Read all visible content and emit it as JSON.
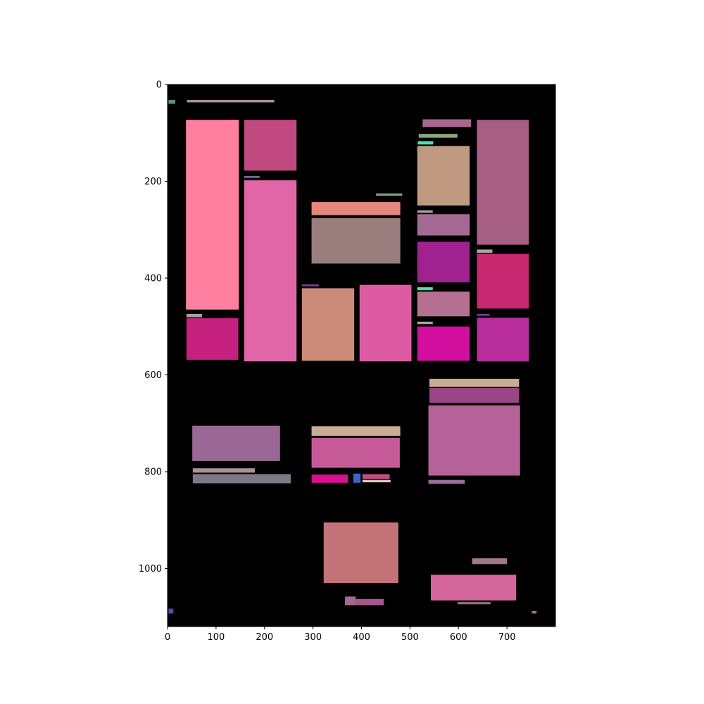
{
  "chart_data": {
    "type": "heatmap",
    "title": "",
    "xlabel": "",
    "ylabel": "",
    "xlim": [
      0,
      800
    ],
    "ylim": [
      1120,
      0
    ],
    "y_inverted": true,
    "grid": false,
    "background": "#000000",
    "x_ticks": [
      0,
      100,
      200,
      300,
      400,
      500,
      600,
      700
    ],
    "y_ticks": [
      0,
      200,
      400,
      600,
      800,
      1000
    ],
    "x_tick_labels": [
      "0",
      "100",
      "200",
      "300",
      "400",
      "500",
      "600",
      "700"
    ],
    "y_tick_labels": [
      "0",
      "200",
      "400",
      "600",
      "800",
      "1000"
    ],
    "rects": [
      {
        "x0": 2,
        "y0": 32,
        "x1": 16,
        "y1": 40,
        "color": "#5f8a8b"
      },
      {
        "x0": 40,
        "y0": 32,
        "x1": 220,
        "y1": 37,
        "color": "#a28f9c"
      },
      {
        "x0": 38,
        "y0": 73,
        "x1": 147,
        "y1": 465,
        "color": "#ff7fa0"
      },
      {
        "x0": 158,
        "y0": 73,
        "x1": 266,
        "y1": 178,
        "color": "#c04a80"
      },
      {
        "x0": 158,
        "y0": 189,
        "x1": 190,
        "y1": 193,
        "color": "#6f6f9b"
      },
      {
        "x0": 158,
        "y0": 198,
        "x1": 266,
        "y1": 572,
        "color": "#e066a8"
      },
      {
        "x0": 39,
        "y0": 474,
        "x1": 71,
        "y1": 481,
        "color": "#a0a898"
      },
      {
        "x0": 39,
        "y0": 483,
        "x1": 146,
        "y1": 569,
        "color": "#c72180"
      },
      {
        "x0": 297,
        "y0": 243,
        "x1": 480,
        "y1": 270,
        "color": "#e4887e"
      },
      {
        "x0": 297,
        "y0": 276,
        "x1": 480,
        "y1": 370,
        "color": "#9a7e7e"
      },
      {
        "x0": 430,
        "y0": 225,
        "x1": 484,
        "y1": 230,
        "color": "#7f9a7c"
      },
      {
        "x0": 277,
        "y0": 413,
        "x1": 312,
        "y1": 417,
        "color": "#7b3c92"
      },
      {
        "x0": 277,
        "y0": 421,
        "x1": 385,
        "y1": 571,
        "color": "#cc8a78"
      },
      {
        "x0": 396,
        "y0": 414,
        "x1": 503,
        "y1": 572,
        "color": "#dd5ba2"
      },
      {
        "x0": 526,
        "y0": 72,
        "x1": 626,
        "y1": 88,
        "color": "#a6668e"
      },
      {
        "x0": 518,
        "y0": 102,
        "x1": 598,
        "y1": 110,
        "color": "#8ea47c"
      },
      {
        "x0": 516,
        "y0": 117,
        "x1": 548,
        "y1": 124,
        "color": "#4fe0b0"
      },
      {
        "x0": 515,
        "y0": 127,
        "x1": 623,
        "y1": 250,
        "color": "#c09a80"
      },
      {
        "x0": 515,
        "y0": 260,
        "x1": 547,
        "y1": 265,
        "color": "#a8a898"
      },
      {
        "x0": 515,
        "y0": 268,
        "x1": 623,
        "y1": 312,
        "color": "#a46a94"
      },
      {
        "x0": 515,
        "y0": 325,
        "x1": 623,
        "y1": 409,
        "color": "#a0228e"
      },
      {
        "x0": 515,
        "y0": 419,
        "x1": 547,
        "y1": 425,
        "color": "#4fe0b0"
      },
      {
        "x0": 515,
        "y0": 428,
        "x1": 623,
        "y1": 479,
        "color": "#b4708e"
      },
      {
        "x0": 515,
        "y0": 490,
        "x1": 547,
        "y1": 495,
        "color": "#a8a898"
      },
      {
        "x0": 515,
        "y0": 500,
        "x1": 623,
        "y1": 571,
        "color": "#d20e9e"
      },
      {
        "x0": 638,
        "y0": 73,
        "x1": 745,
        "y1": 331,
        "color": "#a65e82"
      },
      {
        "x0": 638,
        "y0": 341,
        "x1": 670,
        "y1": 348,
        "color": "#a8a898"
      },
      {
        "x0": 638,
        "y0": 350,
        "x1": 745,
        "y1": 463,
        "color": "#c82870"
      },
      {
        "x0": 638,
        "y0": 474,
        "x1": 664,
        "y1": 478,
        "color": "#6a3ea0"
      },
      {
        "x0": 638,
        "y0": 482,
        "x1": 745,
        "y1": 572,
        "color": "#b82c9c"
      },
      {
        "x0": 540,
        "y0": 608,
        "x1": 725,
        "y1": 625,
        "color": "#c8ac94"
      },
      {
        "x0": 540,
        "y0": 627,
        "x1": 725,
        "y1": 658,
        "color": "#9a4684"
      },
      {
        "x0": 538,
        "y0": 663,
        "x1": 727,
        "y1": 808,
        "color": "#b46298"
      },
      {
        "x0": 538,
        "y0": 817,
        "x1": 613,
        "y1": 825,
        "color": "#9a6ea2"
      },
      {
        "x0": 51,
        "y0": 705,
        "x1": 232,
        "y1": 778,
        "color": "#9a6894"
      },
      {
        "x0": 52,
        "y0": 793,
        "x1": 180,
        "y1": 802,
        "color": "#a89494"
      },
      {
        "x0": 52,
        "y0": 805,
        "x1": 254,
        "y1": 824,
        "color": "#7e7888"
      },
      {
        "x0": 297,
        "y0": 706,
        "x1": 480,
        "y1": 726,
        "color": "#c8ac94"
      },
      {
        "x0": 297,
        "y0": 730,
        "x1": 479,
        "y1": 792,
        "color": "#c65a98"
      },
      {
        "x0": 297,
        "y0": 806,
        "x1": 372,
        "y1": 823,
        "color": "#d8108e"
      },
      {
        "x0": 383,
        "y0": 804,
        "x1": 398,
        "y1": 823,
        "color": "#3f64c8"
      },
      {
        "x0": 402,
        "y0": 805,
        "x1": 458,
        "y1": 815,
        "color": "#c05080"
      },
      {
        "x0": 402,
        "y0": 817,
        "x1": 460,
        "y1": 822,
        "color": "#dcc8b8"
      },
      {
        "x0": 322,
        "y0": 905,
        "x1": 476,
        "y1": 1030,
        "color": "#c47478"
      },
      {
        "x0": 366,
        "y0": 1058,
        "x1": 388,
        "y1": 1076,
        "color": "#a86890"
      },
      {
        "x0": 388,
        "y0": 1063,
        "x1": 446,
        "y1": 1076,
        "color": "#a8568e"
      },
      {
        "x0": 628,
        "y0": 979,
        "x1": 700,
        "y1": 991,
        "color": "#a07a82"
      },
      {
        "x0": 543,
        "y0": 1013,
        "x1": 719,
        "y1": 1066,
        "color": "#d4669c"
      },
      {
        "x0": 598,
        "y0": 1069,
        "x1": 666,
        "y1": 1074,
        "color": "#8a7070"
      },
      {
        "x0": 2,
        "y0": 1083,
        "x1": 12,
        "y1": 1093,
        "color": "#6b3eb0"
      },
      {
        "x0": 751,
        "y0": 1088,
        "x1": 761,
        "y1": 1093,
        "color": "#a86890"
      }
    ]
  }
}
